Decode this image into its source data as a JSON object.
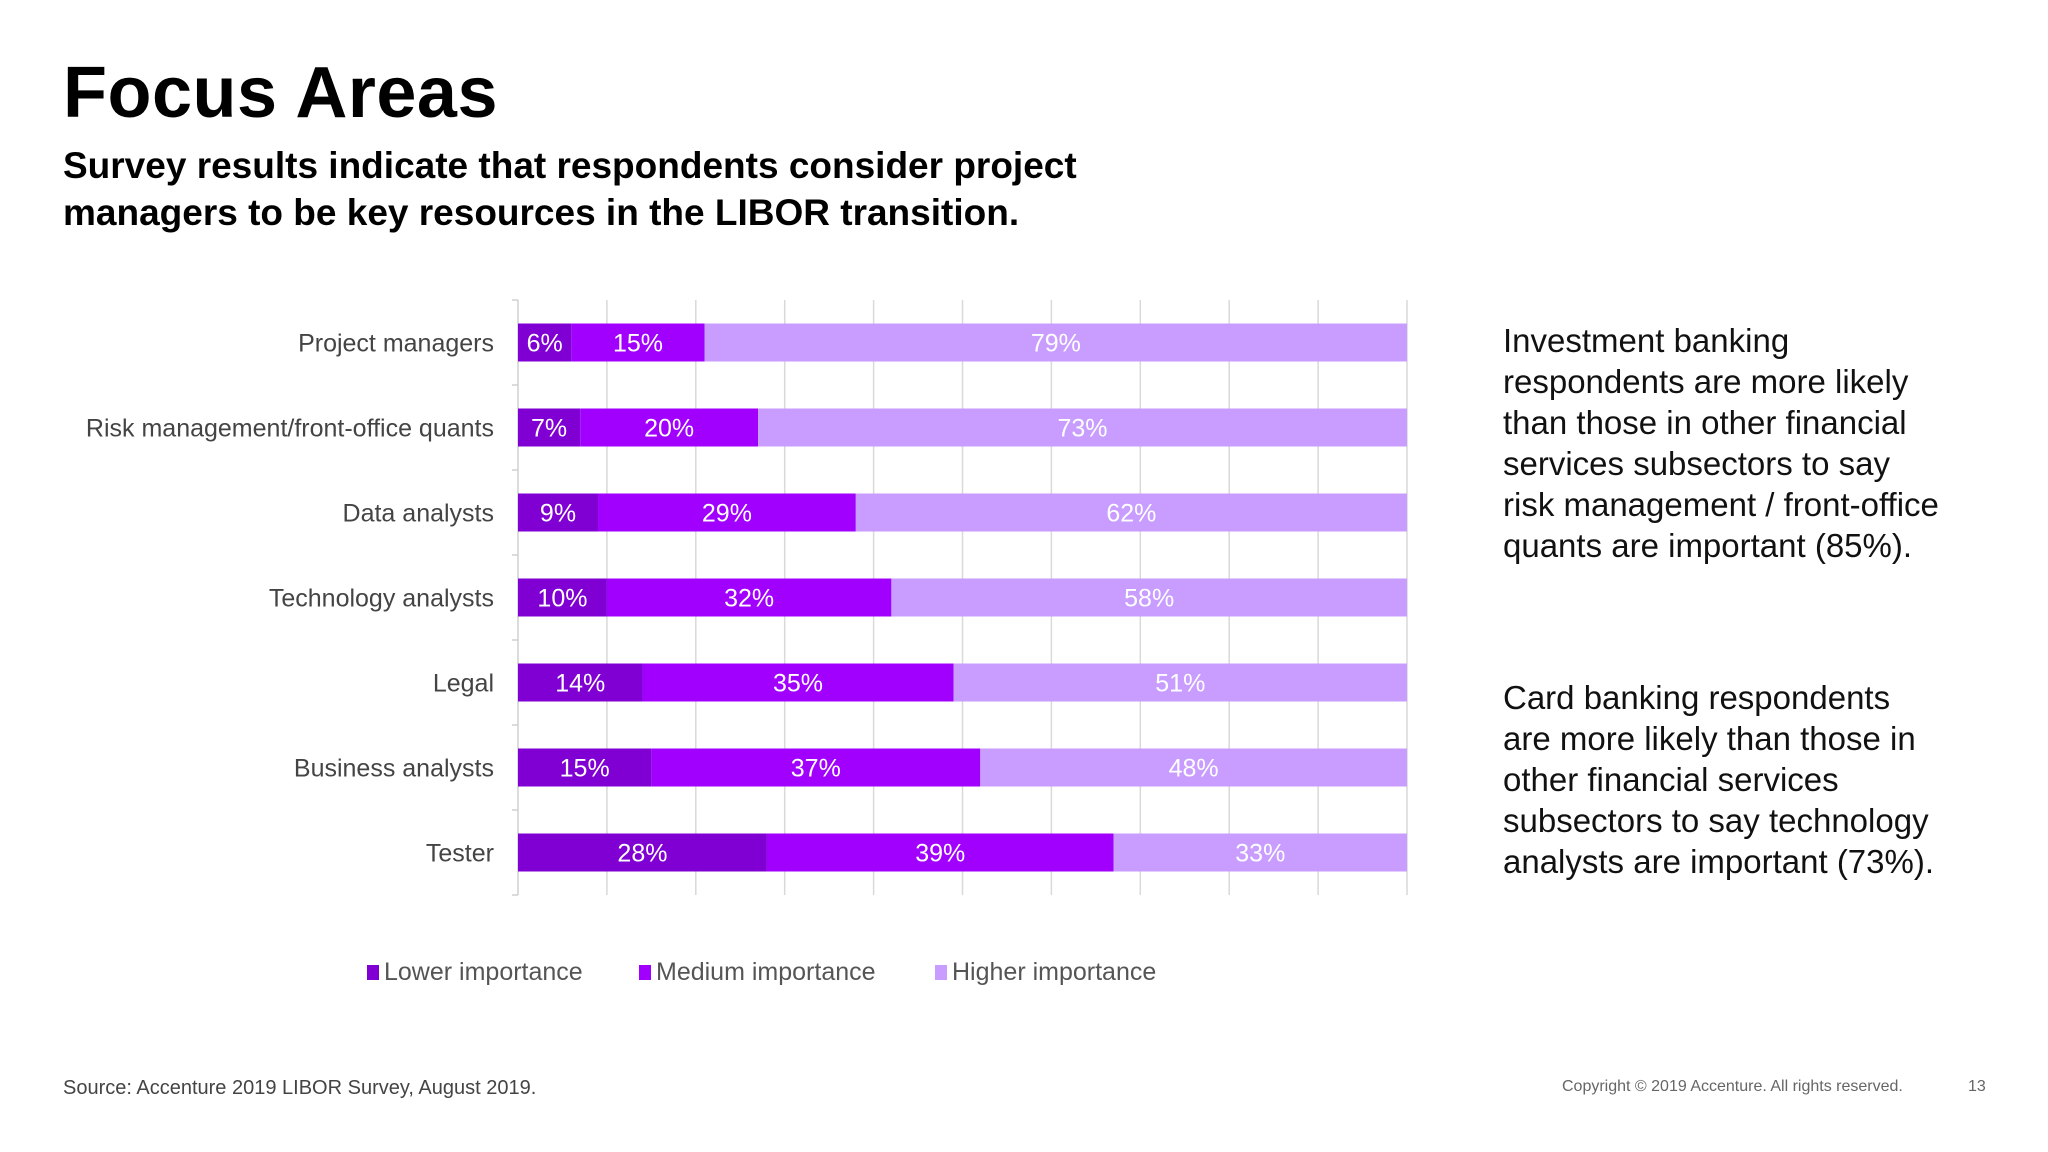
{
  "title": "Focus Areas",
  "subtitle": "Survey results indicate that respondents consider project managers to be key resources in the LIBOR transition.",
  "chart_data": {
    "type": "bar",
    "orientation": "horizontal",
    "stacked": true,
    "categories": [
      "Project managers",
      "Risk management/front-office quants",
      "Data analysts",
      "Technology analysts",
      "Legal",
      "Business analysts",
      "Tester"
    ],
    "series": [
      {
        "name": "Lower importance",
        "color": "#8000D4",
        "values": [
          6,
          7,
          9,
          10,
          14,
          15,
          28
        ]
      },
      {
        "name": "Medium importance",
        "color": "#A100FF",
        "values": [
          15,
          20,
          29,
          32,
          35,
          37,
          39
        ]
      },
      {
        "name": "Higher importance",
        "color": "#C89DFF",
        "values": [
          79,
          73,
          62,
          58,
          51,
          48,
          33
        ]
      }
    ],
    "data_label_suffix": "%",
    "xlim": [
      0,
      100
    ],
    "grid": true,
    "legend": "bottom"
  },
  "side_text": [
    "Investment banking respondents are more likely than those in other financial services subsectors to say risk management / front-office quants are important (85%).",
    "Card banking respondents are more likely than those in other financial services subsectors to say technology analysts are important (73%)."
  ],
  "footer": {
    "source": "Source: Accenture 2019 LIBOR Survey,  August 2019.",
    "copyright": "Copyright © 2019 Accenture. All rights reserved.",
    "page_number": "13"
  }
}
